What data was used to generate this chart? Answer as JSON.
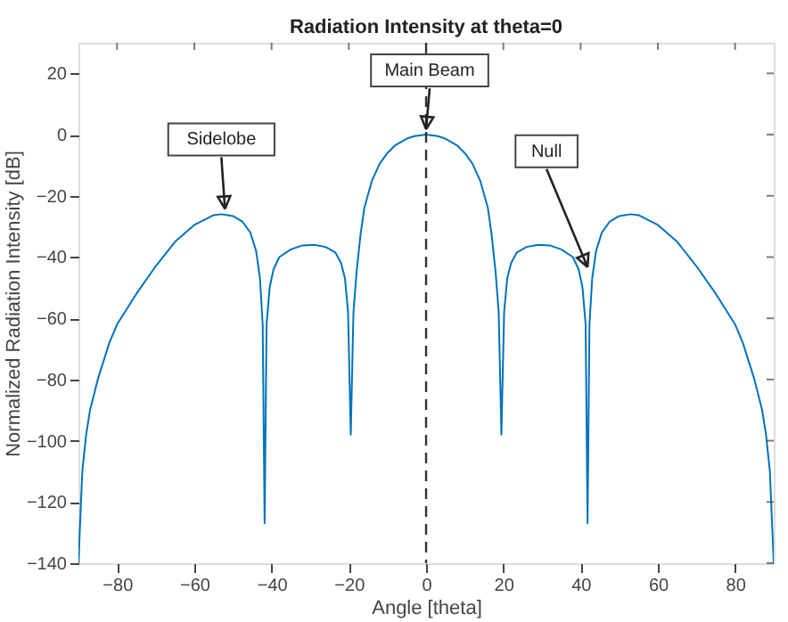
{
  "chart_data": {
    "type": "line",
    "title": "Radiation Intensity at theta=0",
    "xlabel": "Angle [theta]",
    "ylabel": "Normalized Radiation Intensity [dB]",
    "x": [
      -90,
      -89.5,
      -89,
      -88,
      -87,
      -85,
      -82,
      -80,
      -75,
      -70,
      -65,
      -60,
      -55,
      -53,
      -50,
      -47.5,
      -45.5,
      -44,
      -43,
      -42.3,
      -41.8,
      -41.3,
      -40.5,
      -39.5,
      -38,
      -35,
      -32,
      -29,
      -26,
      -23.5,
      -22,
      -21,
      -20.2,
      -19.5,
      -18.8,
      -18,
      -17,
      -16,
      -14,
      -12,
      -10,
      -8,
      -5,
      -3,
      0,
      3,
      5,
      8,
      10,
      12,
      14,
      16,
      17,
      18,
      18.8,
      19.5,
      20.2,
      21,
      22,
      23.5,
      26,
      29,
      32,
      35,
      38,
      39.5,
      40.5,
      41.3,
      41.8,
      42.3,
      43,
      44,
      45.5,
      47.5,
      50,
      53,
      55,
      60,
      65,
      70,
      75,
      80,
      82,
      85,
      87,
      88,
      89,
      89.5,
      90
    ],
    "series": [
      {
        "color": "#0072bd",
        "values": [
          -140,
          -125,
          -110,
          -98,
          -90,
          -80,
          -68,
          -62,
          -52,
          -43,
          -35,
          -29.5,
          -26.3,
          -26,
          -26.6,
          -28.5,
          -32,
          -38,
          -47,
          -62,
          -127,
          -62,
          -50,
          -44,
          -40,
          -37.5,
          -36.2,
          -36,
          -36.7,
          -38.5,
          -42,
          -47,
          -58,
          -98,
          -58,
          -45,
          -33,
          -24,
          -15,
          -9.5,
          -6,
          -3.5,
          -1.3,
          -0.5,
          0,
          -0.5,
          -1.3,
          -3.5,
          -6,
          -9.5,
          -15,
          -24,
          -33,
          -45,
          -58,
          -98,
          -58,
          -47,
          -42,
          -38.5,
          -36.7,
          -36,
          -36.2,
          -37.5,
          -40,
          -44,
          -50,
          -62,
          -127,
          -62,
          -47,
          -38,
          -32,
          -28.5,
          -26.6,
          -26,
          -26.3,
          -29.5,
          -35,
          -43,
          -52,
          -62,
          -68,
          -80,
          -90,
          -98,
          -110,
          -125,
          -140
        ]
      }
    ],
    "xlim": [
      -90,
      90
    ],
    "ylim": [
      -140,
      30
    ],
    "xticks": [
      -80,
      -60,
      -40,
      -20,
      0,
      20,
      40,
      60,
      80
    ],
    "yticks": [
      -140,
      -120,
      -100,
      -80,
      -60,
      -40,
      -20,
      0,
      20
    ],
    "grid": false,
    "marker": "none",
    "line_style": "solid",
    "ref_lines": [
      {
        "axis": "x",
        "value": 0,
        "color": "#333333",
        "line_style": "dashed"
      }
    ],
    "annotations": [
      {
        "text": "Sidelobe",
        "x": -53,
        "y": -26
      },
      {
        "text": "Main Beam",
        "x": 0,
        "y": 0
      },
      {
        "text": "Null",
        "x": 41.8,
        "y": -45
      }
    ]
  }
}
